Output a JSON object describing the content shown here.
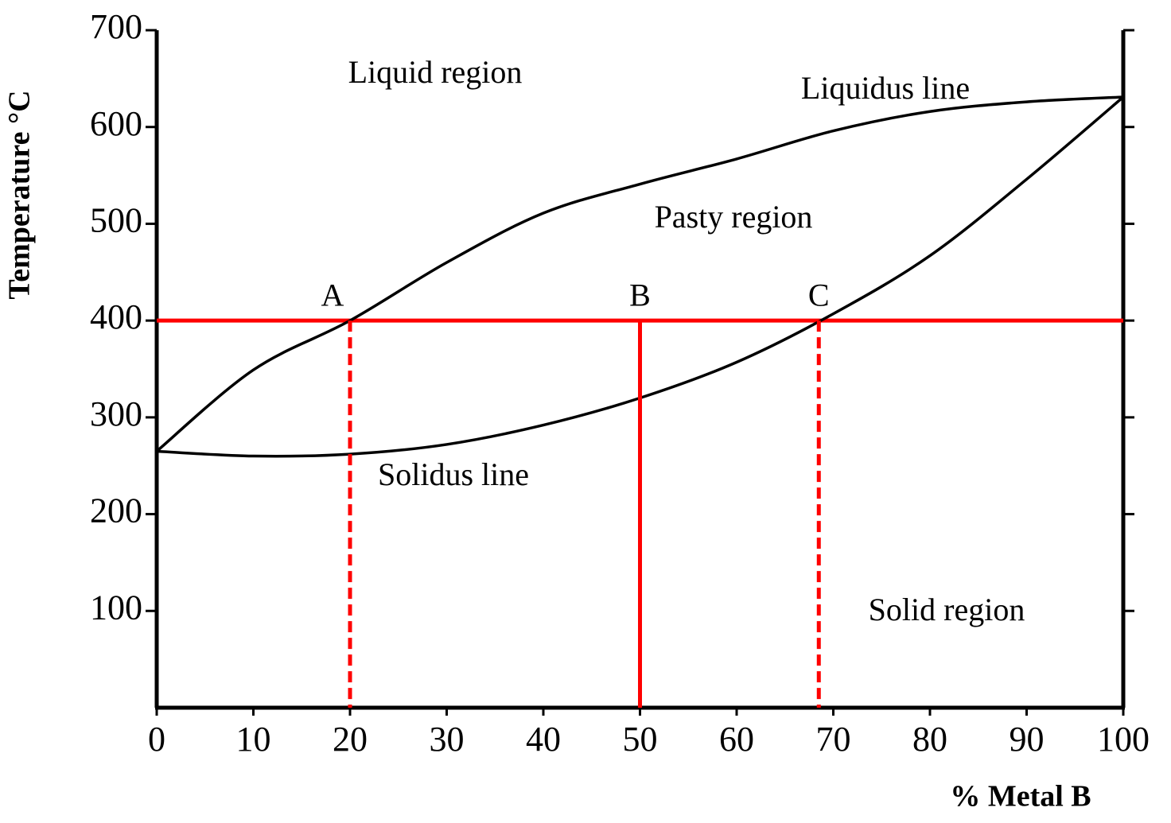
{
  "chart_data": {
    "type": "line",
    "xlabel": "% Metal B",
    "ylabel": "Temperature °C",
    "x": [
      0,
      10,
      20,
      30,
      40,
      50,
      60,
      70,
      80,
      90,
      100
    ],
    "series": [
      {
        "name": "Liquidus line",
        "color": "#000000",
        "values": [
          265,
          349,
          400,
          460,
          511,
          541,
          567,
          596,
          616,
          626,
          631
        ]
      },
      {
        "name": "Solidus line",
        "color": "#000000",
        "values": [
          265,
          260,
          262,
          272,
          292,
          320,
          357,
          407,
          467,
          546,
          631
        ]
      }
    ],
    "xlim": [
      0,
      100
    ],
    "xticks": [
      0,
      10,
      20,
      30,
      40,
      50,
      60,
      70,
      80,
      90,
      100
    ],
    "ylim": [
      0,
      700
    ],
    "yticks": [
      100,
      200,
      300,
      400,
      500,
      600,
      700
    ],
    "hline": {
      "y": 400,
      "color": "#ff0000"
    },
    "markers": [
      {
        "label": "A",
        "x": 20,
        "y": 400,
        "style": "dashed"
      },
      {
        "label": "B",
        "x": 50,
        "y": 400,
        "style": "solid"
      },
      {
        "label": "C",
        "x": 68.5,
        "y": 400,
        "style": "dashed"
      }
    ],
    "annotations": [
      "Liquid region",
      "Liquidus line",
      "Pasty region",
      "Solidus line",
      "Solid region"
    ]
  }
}
